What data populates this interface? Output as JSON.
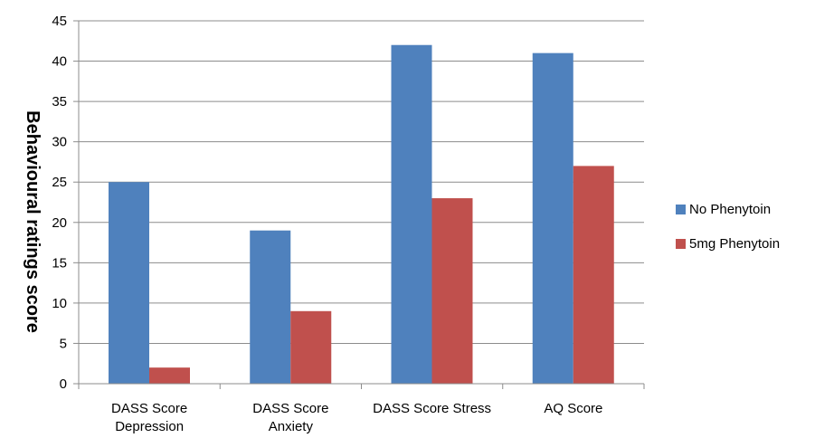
{
  "chart_data": {
    "type": "bar",
    "title": "",
    "xlabel": "",
    "ylabel": "Behavioural ratings score",
    "ylim": [
      0,
      45
    ],
    "yticks": [
      0,
      5,
      10,
      15,
      20,
      25,
      30,
      35,
      40,
      45
    ],
    "grid": true,
    "legend_position": "right",
    "categories": [
      [
        "DASS Score",
        "Depression"
      ],
      [
        "DASS Score",
        "Anxiety"
      ],
      [
        "DASS Score Stress"
      ],
      [
        "AQ Score"
      ]
    ],
    "series": [
      {
        "name": "No Phenytoin",
        "color": "#4f81bd",
        "values": [
          25,
          19,
          42,
          41
        ]
      },
      {
        "name": "5mg Phenytoin",
        "color": "#c0504d",
        "values": [
          2,
          9,
          23,
          27
        ]
      }
    ]
  }
}
